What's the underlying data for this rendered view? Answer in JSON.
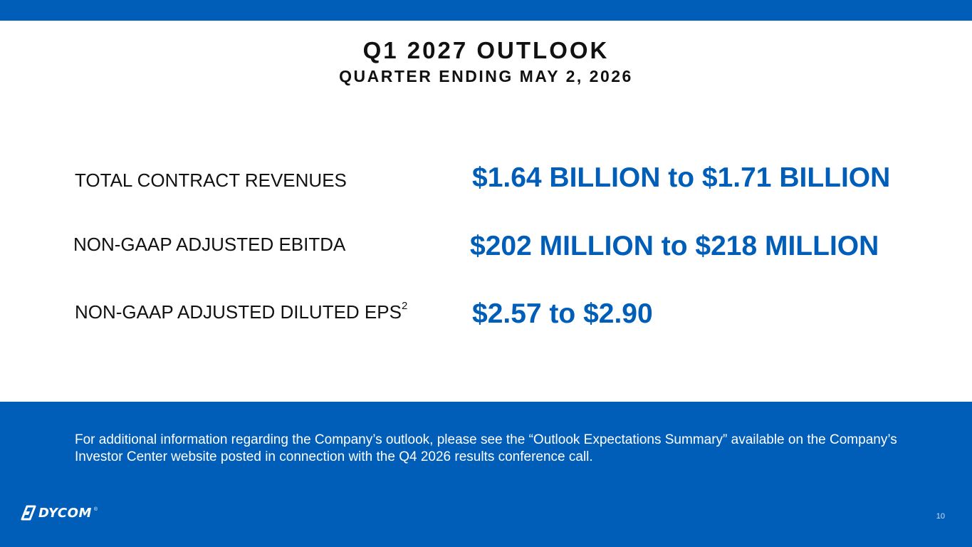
{
  "slide": {
    "title": "Q1 2027 OUTLOOK",
    "subtitle": "QUARTER ENDING MAY 2, 2026",
    "metrics": [
      {
        "label": "TOTAL CONTRACT REVENUES",
        "value": "$1.64 BILLION to $1.71 BILLION"
      },
      {
        "label": "NON-GAAP ADJUSTED EBITDA",
        "value": "$202 MILLION to $218 MILLION"
      },
      {
        "label": "NON-GAAP ADJUSTED DILUTED EPS",
        "footnote": "2",
        "value": "$2.57 to $2.90"
      }
    ],
    "note": "For additional information regarding the Company’s outlook, please see the “Outlook Expectations Summary” available on the Company’s Investor Center website posted in connection with the Q4 2026 results conference call.",
    "page_number": "10"
  },
  "brand": {
    "logo_text": "DYCOM",
    "trademark": "®",
    "logo_icon": "dycom-logo-icon"
  },
  "colors": {
    "accent": "#005eb8",
    "text": "#111111",
    "background": "#ffffff"
  }
}
